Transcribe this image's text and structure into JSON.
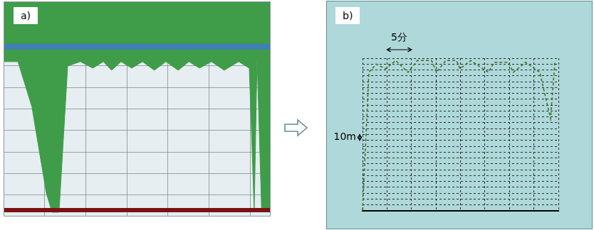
{
  "chart_data": [
    {
      "type": "area",
      "panel_label": "a)",
      "x": [
        0,
        3.5,
        6.9,
        10.4,
        11.8,
        13.5,
        15.6,
        18.7,
        21.7,
        24.3,
        26.3,
        28.6,
        31.2,
        33.8,
        36.7,
        39.5,
        42.5,
        45.1,
        47.7,
        50.6,
        53.7,
        57.2,
        59.8,
        61,
        61.7,
        62.8,
        65
      ],
      "series": [
        {
          "type": "area",
          "color": "#3f9c48",
          "values": [
            28,
            28,
            49,
            89,
            98,
            98,
            30,
            28,
            31,
            28,
            32,
            28,
            31,
            28,
            32,
            28,
            32,
            28,
            31,
            28,
            32,
            28,
            31,
            97,
            26,
            97,
            98
          ]
        },
        {
          "type": "line",
          "color": "#7a1212",
          "values": [
            97,
            97,
            97,
            97,
            97,
            97,
            97,
            97,
            97,
            97,
            97,
            97,
            97,
            97,
            97,
            97,
            97,
            97,
            97,
            97,
            97,
            97,
            97,
            97,
            97,
            97,
            97
          ]
        },
        {
          "type": "line",
          "color": "#3f7fb5",
          "values": [
            21,
            21,
            21,
            21,
            21,
            21,
            21,
            21,
            21,
            21,
            21,
            21,
            21,
            21,
            21,
            21,
            21,
            21,
            21,
            21,
            21,
            21,
            21,
            21,
            21,
            21,
            21
          ]
        }
      ],
      "xlim": [
        0,
        65
      ],
      "xticks": [
        0,
        10,
        20,
        30,
        40,
        50,
        60
      ],
      "ylim": [
        0,
        100
      ],
      "yticks": [
        0,
        10,
        20,
        30,
        40,
        50,
        60,
        70,
        80,
        90,
        100
      ],
      "grid": true,
      "tick_labels": false
    },
    {
      "type": "line",
      "panel_label": "b)",
      "x": [
        0,
        1.3,
        2.8,
        4.7,
        6.8,
        9.3,
        11.2,
        14.1,
        15.1,
        17.0,
        19.2,
        19.9,
        22.1,
        25.7,
        26.9,
        29.8,
        30.8,
        33.3,
        36.2,
        38.4,
        39.3
      ],
      "values": [
        260,
        24,
        10,
        18,
        4,
        24,
        4,
        4,
        24,
        4,
        4,
        18,
        4,
        24,
        7,
        7,
        24,
        7,
        24,
        103,
        6
      ],
      "color": "#3d6b1f",
      "line_style": "dashed",
      "xlim": [
        0,
        40
      ],
      "xticks": [
        0,
        5,
        10,
        15,
        20,
        25,
        30,
        35,
        40
      ],
      "ylim": [
        0,
        260
      ],
      "yticks": [
        0,
        10,
        20,
        30,
        40,
        50,
        60,
        70,
        80,
        90,
        100,
        110,
        120,
        130,
        140,
        150,
        160,
        170,
        180,
        190,
        200,
        210,
        220,
        230,
        240,
        250,
        260
      ],
      "grid": true,
      "tick_labels": false,
      "annotations": [
        {
          "text": "5分",
          "value": 5,
          "axis": "x"
        },
        {
          "text": "10m",
          "value": 10,
          "axis": "y"
        }
      ]
    }
  ]
}
